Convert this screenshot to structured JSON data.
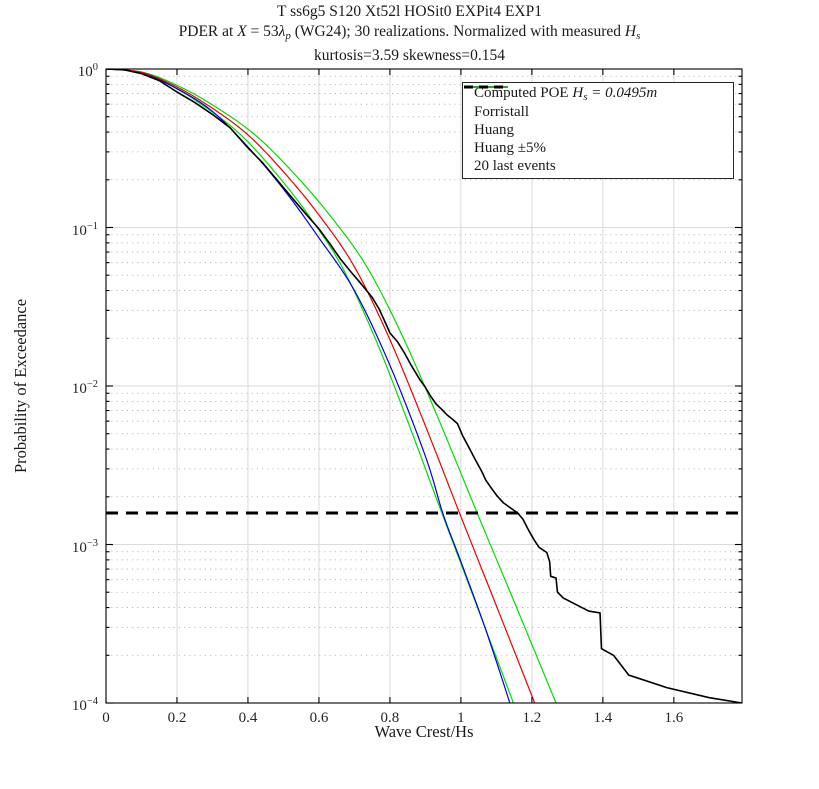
{
  "chart_data": {
    "type": "line",
    "title_lines": [
      "T ss6g5 S120 Xt52l HOSit0 EXPit4 EXP1",
      "PDER at X = 53λp (WG24); 30 realizations. Normalized with measured Hs",
      "kurtosis=3.59 skewness=0.154"
    ],
    "title_line2_rich": [
      {
        "t": "PDER at "
      },
      {
        "t": "X",
        "i": true
      },
      {
        "t": " = 53"
      },
      {
        "t": "λ",
        "i": true
      },
      {
        "t": "p",
        "sub": true
      },
      {
        "t": " (WG24); 30 realizations. Normalized with measured "
      },
      {
        "t": "H",
        "i": true
      },
      {
        "t": "s",
        "sub": true
      }
    ],
    "axes": {
      "xlabel": "Wave Crest/Hs",
      "ylabel": "Probability of Exceedance",
      "xlim": [
        0,
        1.792
      ],
      "ylog": true,
      "ylim": [
        0.0001,
        1
      ],
      "xticks": [
        0,
        0.2,
        0.4,
        0.6,
        0.8,
        1,
        1.2,
        1.4,
        1.6
      ],
      "xtick_labels": [
        "0",
        "0.2",
        "0.4",
        "0.6",
        "0.8",
        "1",
        "1.2",
        "1.4",
        "1.6"
      ],
      "ytick_exponents": [
        0,
        -1,
        -2,
        -3,
        -4
      ],
      "grid": "major-solid-minor-dotted",
      "legend_position": "top-right"
    },
    "colors": {
      "computed": "#000000",
      "forristall": "#0000EE",
      "huang": "#EE0000",
      "huang_band": "#00DD00",
      "grid_major": "#d9d9d9",
      "grid_minor": "#ababab",
      "axis": "#000000"
    },
    "threshold": {
      "label": "20 last events",
      "poe": 0.00158,
      "color": "#000000",
      "style": "dashed"
    },
    "series": [
      {
        "name": "huang-minus5",
        "legend": null,
        "color": "#00DD00",
        "width": 1.2,
        "smooth": true,
        "points": [
          [
            0,
            1
          ],
          [
            0.095,
            0.952
          ],
          [
            0.19,
            0.77
          ],
          [
            0.285,
            0.565
          ],
          [
            0.38,
            0.384
          ],
          [
            0.475,
            0.225
          ],
          [
            0.57,
            0.12
          ],
          [
            0.665,
            0.0565
          ],
          [
            0.76,
            0.0196
          ],
          [
            0.855,
            0.0056
          ],
          [
            0.95,
            0.0015
          ],
          [
            1.045,
            0.00041
          ],
          [
            1.148,
            0.0001
          ]
        ]
      },
      {
        "name": "huang-plus5",
        "legend": "Huang ±5%",
        "color": "#00DD00",
        "width": 1.2,
        "smooth": true,
        "points": [
          [
            0,
            1
          ],
          [
            0.105,
            0.952
          ],
          [
            0.21,
            0.77
          ],
          [
            0.315,
            0.565
          ],
          [
            0.42,
            0.384
          ],
          [
            0.525,
            0.225
          ],
          [
            0.63,
            0.12
          ],
          [
            0.735,
            0.0565
          ],
          [
            0.84,
            0.0196
          ],
          [
            0.945,
            0.0056
          ],
          [
            1.05,
            0.0015
          ],
          [
            1.155,
            0.00041
          ],
          [
            1.268,
            0.0001
          ]
        ]
      },
      {
        "name": "forristall",
        "legend": "Forristall",
        "color": "#0000EE",
        "width": 1.2,
        "smooth": true,
        "points": [
          [
            0,
            1
          ],
          [
            0.1,
            0.945
          ],
          [
            0.2,
            0.752
          ],
          [
            0.3,
            0.54
          ],
          [
            0.4,
            0.322
          ],
          [
            0.5,
            0.175
          ],
          [
            0.6,
            0.086
          ],
          [
            0.7,
            0.04
          ],
          [
            0.8,
            0.0135
          ],
          [
            0.9,
            0.0036
          ],
          [
            0.95,
            0.00155
          ],
          [
            1.0,
            0.00078
          ],
          [
            1.07,
            0.00029
          ],
          [
            1.138,
            0.0001
          ]
        ]
      },
      {
        "name": "huang",
        "legend": "Huang",
        "color": "#EE0000",
        "width": 1.2,
        "smooth": true,
        "points": [
          [
            0,
            1
          ],
          [
            0.1,
            0.952
          ],
          [
            0.2,
            0.77
          ],
          [
            0.3,
            0.565
          ],
          [
            0.4,
            0.384
          ],
          [
            0.5,
            0.225
          ],
          [
            0.6,
            0.12
          ],
          [
            0.7,
            0.0565
          ],
          [
            0.8,
            0.0196
          ],
          [
            0.9,
            0.0056
          ],
          [
            1.0,
            0.0015
          ],
          [
            1.1,
            0.00041
          ],
          [
            1.208,
            0.0001
          ]
        ]
      },
      {
        "name": "computed-poe",
        "legend": "Computed POE Hs = 0.0495m",
        "color": "#000000",
        "width": 1.6,
        "smooth": false,
        "points": [
          [
            0,
            1
          ],
          [
            0.05,
            0.99
          ],
          [
            0.1,
            0.935
          ],
          [
            0.15,
            0.845
          ],
          [
            0.2,
            0.716
          ],
          [
            0.25,
            0.615
          ],
          [
            0.3,
            0.517
          ],
          [
            0.35,
            0.425
          ],
          [
            0.4,
            0.318
          ],
          [
            0.44,
            0.258
          ],
          [
            0.48,
            0.202
          ],
          [
            0.52,
            0.158
          ],
          [
            0.56,
            0.124
          ],
          [
            0.6,
            0.098
          ],
          [
            0.63,
            0.0795
          ],
          [
            0.66,
            0.0635
          ],
          [
            0.69,
            0.0525
          ],
          [
            0.72,
            0.0438
          ],
          [
            0.75,
            0.0362
          ],
          [
            0.77,
            0.0305
          ],
          [
            0.79,
            0.0243
          ],
          [
            0.8,
            0.0216
          ],
          [
            0.82,
            0.0192
          ],
          [
            0.84,
            0.0163
          ],
          [
            0.86,
            0.0135
          ],
          [
            0.885,
            0.0109
          ],
          [
            0.9,
            0.0098
          ],
          [
            0.915,
            0.0086
          ],
          [
            0.93,
            0.0077
          ],
          [
            0.945,
            0.00715
          ],
          [
            0.96,
            0.0066
          ],
          [
            0.975,
            0.0062
          ],
          [
            0.99,
            0.0058
          ],
          [
            1.005,
            0.00485
          ],
          [
            1.02,
            0.0042
          ],
          [
            1.04,
            0.00345
          ],
          [
            1.06,
            0.00285
          ],
          [
            1.07,
            0.00255
          ],
          [
            1.085,
            0.00228
          ],
          [
            1.1,
            0.00205
          ],
          [
            1.12,
            0.00183
          ],
          [
            1.14,
            0.0017
          ],
          [
            1.16,
            0.00158
          ],
          [
            1.175,
            0.00144
          ],
          [
            1.19,
            0.00124
          ],
          [
            1.205,
            0.00108
          ],
          [
            1.22,
            0.00096
          ],
          [
            1.242,
            0.00089
          ],
          [
            1.25,
            0.00078
          ],
          [
            1.253,
            0.00063
          ],
          [
            1.268,
            0.000615
          ],
          [
            1.272,
            0.0005
          ],
          [
            1.284,
            0.00047
          ],
          [
            1.288,
            0.00046
          ],
          [
            1.36,
            0.00038
          ],
          [
            1.392,
            0.00037
          ],
          [
            1.396,
            0.00022
          ],
          [
            1.43,
            0.0002
          ],
          [
            1.473,
            0.00015
          ],
          [
            1.58,
            0.000125
          ],
          [
            1.7,
            0.000108
          ],
          [
            1.792,
            0.0001
          ]
        ]
      }
    ],
    "legend_items": [
      {
        "color": "#000000",
        "dashed": false,
        "width": 1.6,
        "label": "Computed POE Hs = 0.0495m",
        "label_rich": [
          {
            "t": "Computed POE "
          },
          {
            "t": "H",
            "i": true
          },
          {
            "t": "s",
            "sub": true
          },
          {
            "t": " = 0.0495",
            "i": true
          },
          {
            "t": "m",
            "i": true
          }
        ]
      },
      {
        "color": "#0000EE",
        "dashed": false,
        "width": 1.2,
        "label": "Forristall"
      },
      {
        "color": "#EE0000",
        "dashed": false,
        "width": 1.2,
        "label": "Huang"
      },
      {
        "color": "#00DD00",
        "dashed": false,
        "width": 1.2,
        "label": "Huang ±5%"
      },
      {
        "color": "#000000",
        "dashed": true,
        "width": 3,
        "label": "20 last events"
      }
    ]
  }
}
